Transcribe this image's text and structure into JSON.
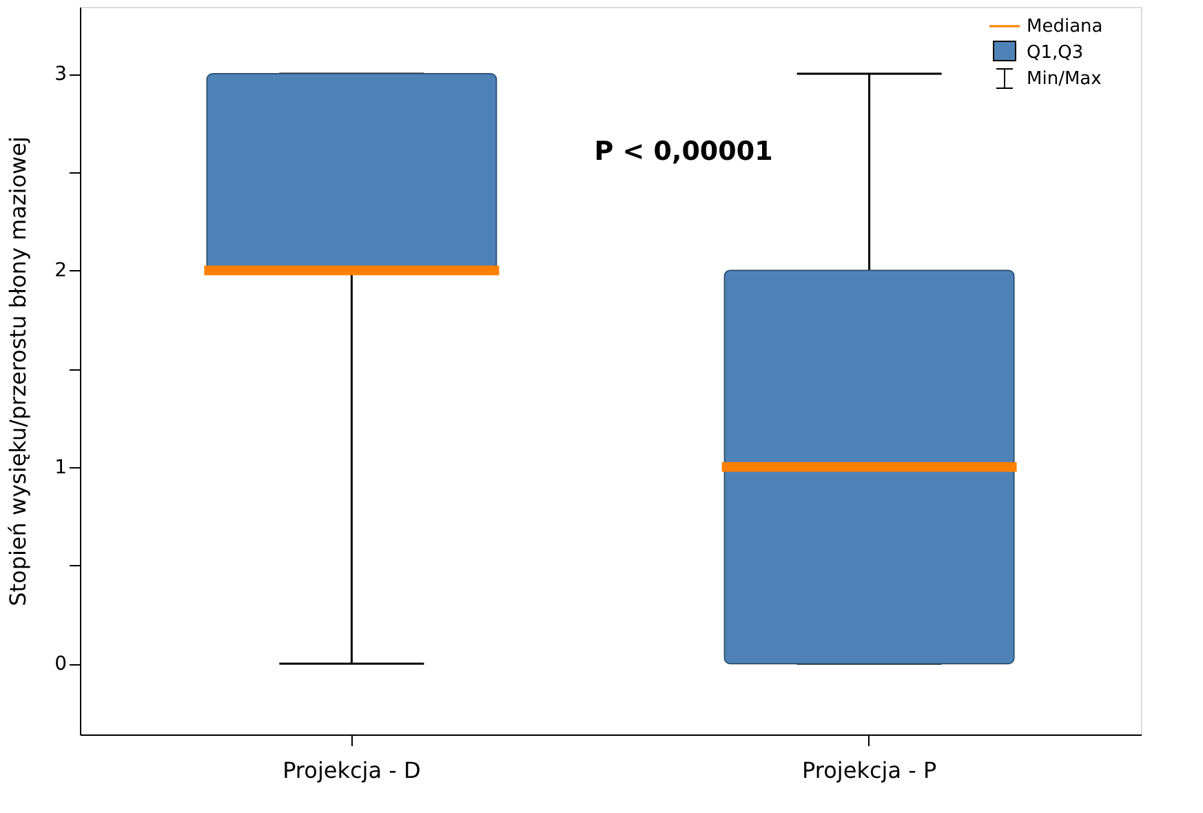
{
  "chart_data": {
    "type": "box",
    "categories": [
      "Projekcja  - D",
      "Projekcja - P"
    ],
    "series": [
      {
        "name": "Q1,Q3",
        "color": "#4f83b8",
        "boxes": [
          {
            "low": 0,
            "q1": 2,
            "median": 2,
            "q3": 3,
            "high": 3
          },
          {
            "low": 0,
            "q1": 0,
            "median": 1,
            "q3": 2,
            "high": 3
          }
        ]
      }
    ],
    "ylabel": "Stopień wysięku/przerostu błony maziowej",
    "ylim": [
      -0.36,
      3.34
    ],
    "yticks": [
      0,
      {
        "value": 0.5,
        "label": null
      },
      1,
      {
        "value": 1.5,
        "label": null
      },
      2,
      {
        "value": 2.5,
        "label": null
      },
      3
    ],
    "annotations": [
      "P < 0,00001",
      "Mediana",
      "Min/Max"
    ],
    "legend": "top right",
    "grid": false
  }
}
